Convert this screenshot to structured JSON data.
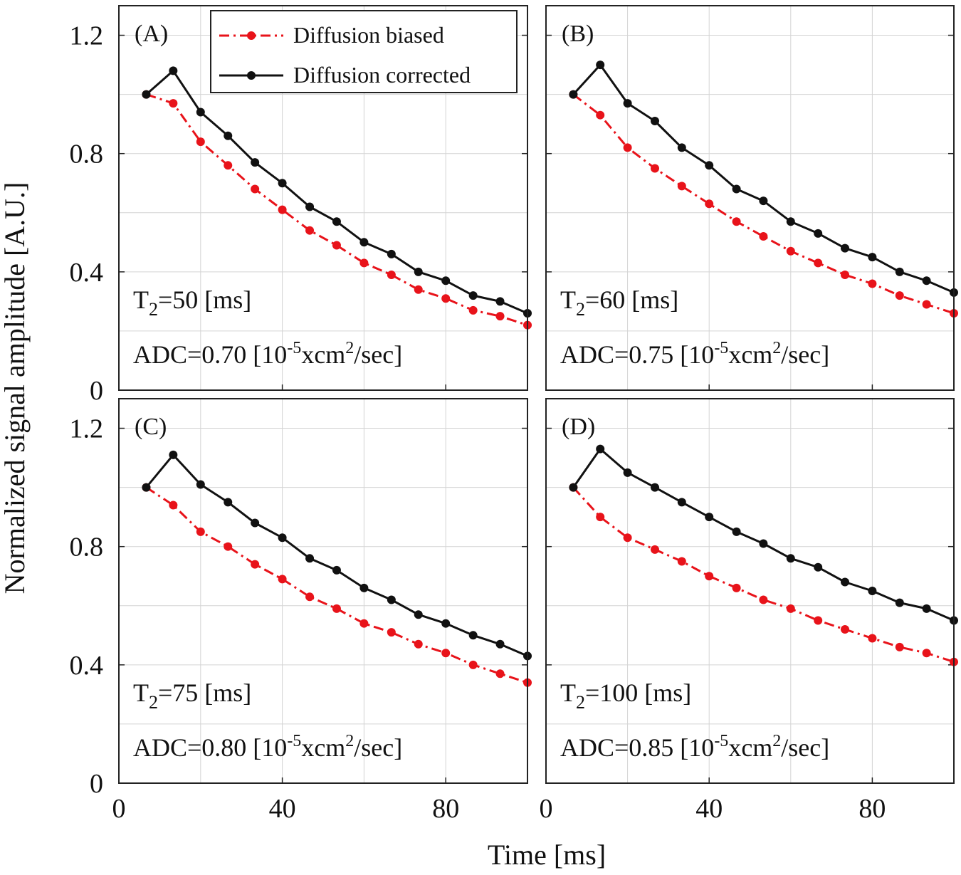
{
  "colors": {
    "biased": "#e8131a",
    "corrected": "#111111",
    "grid": "#d4d4d4",
    "axis": "#222222"
  },
  "xlabel": "Time [ms]",
  "ylabel": "Normalized signal amplitude [A.U.]",
  "legend": {
    "biased": "Diffusion biased",
    "corrected": "Diffusion corrected"
  },
  "chart_data": [
    {
      "type": "line",
      "panel": "(A)",
      "t2_label": "T",
      "t2_sub": "2",
      "t2_value": "=50  [ms]",
      "adc_prefix": "ADC=0.70  [10",
      "adc_exp": "-5",
      "adc_mid": "xcm",
      "adc_sq": "2",
      "adc_suffix": "/sec]",
      "xlim": [
        0,
        100
      ],
      "ylim": [
        0,
        1.3
      ],
      "xticks": [
        0,
        40,
        80
      ],
      "yticks": [
        0,
        0.4,
        0.8,
        1.2
      ],
      "x": [
        6.7,
        13.3,
        20,
        26.7,
        33.3,
        40,
        46.7,
        53.3,
        60,
        66.7,
        73.3,
        80,
        86.7,
        93.3,
        100
      ],
      "series": [
        {
          "name": "Diffusion biased",
          "values": [
            1.0,
            0.97,
            0.84,
            0.76,
            0.68,
            0.61,
            0.54,
            0.49,
            0.43,
            0.39,
            0.34,
            0.31,
            0.27,
            0.25,
            0.22
          ]
        },
        {
          "name": "Diffusion corrected",
          "values": [
            1.0,
            1.08,
            0.94,
            0.86,
            0.77,
            0.7,
            0.62,
            0.57,
            0.5,
            0.46,
            0.4,
            0.37,
            0.32,
            0.3,
            0.26
          ]
        }
      ]
    },
    {
      "type": "line",
      "panel": "(B)",
      "t2_label": "T",
      "t2_sub": "2",
      "t2_value": "=60  [ms]",
      "adc_prefix": "ADC=0.75  [10",
      "adc_exp": "-5",
      "adc_mid": "xcm",
      "adc_sq": "2",
      "adc_suffix": "/sec]",
      "xlim": [
        0,
        100
      ],
      "ylim": [
        0,
        1.3
      ],
      "xticks": [
        0,
        40,
        80
      ],
      "yticks": [
        0,
        0.4,
        0.8,
        1.2
      ],
      "x": [
        6.7,
        13.3,
        20,
        26.7,
        33.3,
        40,
        46.7,
        53.3,
        60,
        66.7,
        73.3,
        80,
        86.7,
        93.3,
        100
      ],
      "series": [
        {
          "name": "Diffusion biased",
          "values": [
            1.0,
            0.93,
            0.82,
            0.75,
            0.69,
            0.63,
            0.57,
            0.52,
            0.47,
            0.43,
            0.39,
            0.36,
            0.32,
            0.29,
            0.26
          ]
        },
        {
          "name": "Diffusion corrected",
          "values": [
            1.0,
            1.1,
            0.97,
            0.91,
            0.82,
            0.76,
            0.68,
            0.64,
            0.57,
            0.53,
            0.48,
            0.45,
            0.4,
            0.37,
            0.33
          ]
        }
      ]
    },
    {
      "type": "line",
      "panel": "(C)",
      "t2_label": "T",
      "t2_sub": "2",
      "t2_value": "=75  [ms]",
      "adc_prefix": "ADC=0.80  [10",
      "adc_exp": "-5",
      "adc_mid": "xcm",
      "adc_sq": "2",
      "adc_suffix": "/sec]",
      "xlim": [
        0,
        100
      ],
      "ylim": [
        0,
        1.3
      ],
      "xticks": [
        0,
        40,
        80
      ],
      "yticks": [
        0,
        0.4,
        0.8,
        1.2
      ],
      "x": [
        6.7,
        13.3,
        20,
        26.7,
        33.3,
        40,
        46.7,
        53.3,
        60,
        66.7,
        73.3,
        80,
        86.7,
        93.3,
        100
      ],
      "series": [
        {
          "name": "Diffusion biased",
          "values": [
            1.0,
            0.94,
            0.85,
            0.8,
            0.74,
            0.69,
            0.63,
            0.59,
            0.54,
            0.51,
            0.47,
            0.44,
            0.4,
            0.37,
            0.34
          ]
        },
        {
          "name": "Diffusion corrected",
          "values": [
            1.0,
            1.11,
            1.01,
            0.95,
            0.88,
            0.83,
            0.76,
            0.72,
            0.66,
            0.62,
            0.57,
            0.54,
            0.5,
            0.47,
            0.43
          ]
        }
      ]
    },
    {
      "type": "line",
      "panel": "(D)",
      "t2_label": "T",
      "t2_sub": "2",
      "t2_value": "=100  [ms]",
      "adc_prefix": "ADC=0.85  [10",
      "adc_exp": "-5",
      "adc_mid": "xcm",
      "adc_sq": "2",
      "adc_suffix": "/sec]",
      "xlim": [
        0,
        100
      ],
      "ylim": [
        0,
        1.3
      ],
      "xticks": [
        0,
        40,
        80
      ],
      "yticks": [
        0,
        0.4,
        0.8,
        1.2
      ],
      "x": [
        6.7,
        13.3,
        20,
        26.7,
        33.3,
        40,
        46.7,
        53.3,
        60,
        66.7,
        73.3,
        80,
        86.7,
        93.3,
        100
      ],
      "series": [
        {
          "name": "Diffusion biased",
          "values": [
            1.0,
            0.9,
            0.83,
            0.79,
            0.75,
            0.7,
            0.66,
            0.62,
            0.59,
            0.55,
            0.52,
            0.49,
            0.46,
            0.44,
            0.41
          ]
        },
        {
          "name": "Diffusion corrected",
          "values": [
            1.0,
            1.13,
            1.05,
            1.0,
            0.95,
            0.9,
            0.85,
            0.81,
            0.76,
            0.73,
            0.68,
            0.65,
            0.61,
            0.59,
            0.55
          ]
        }
      ]
    }
  ]
}
